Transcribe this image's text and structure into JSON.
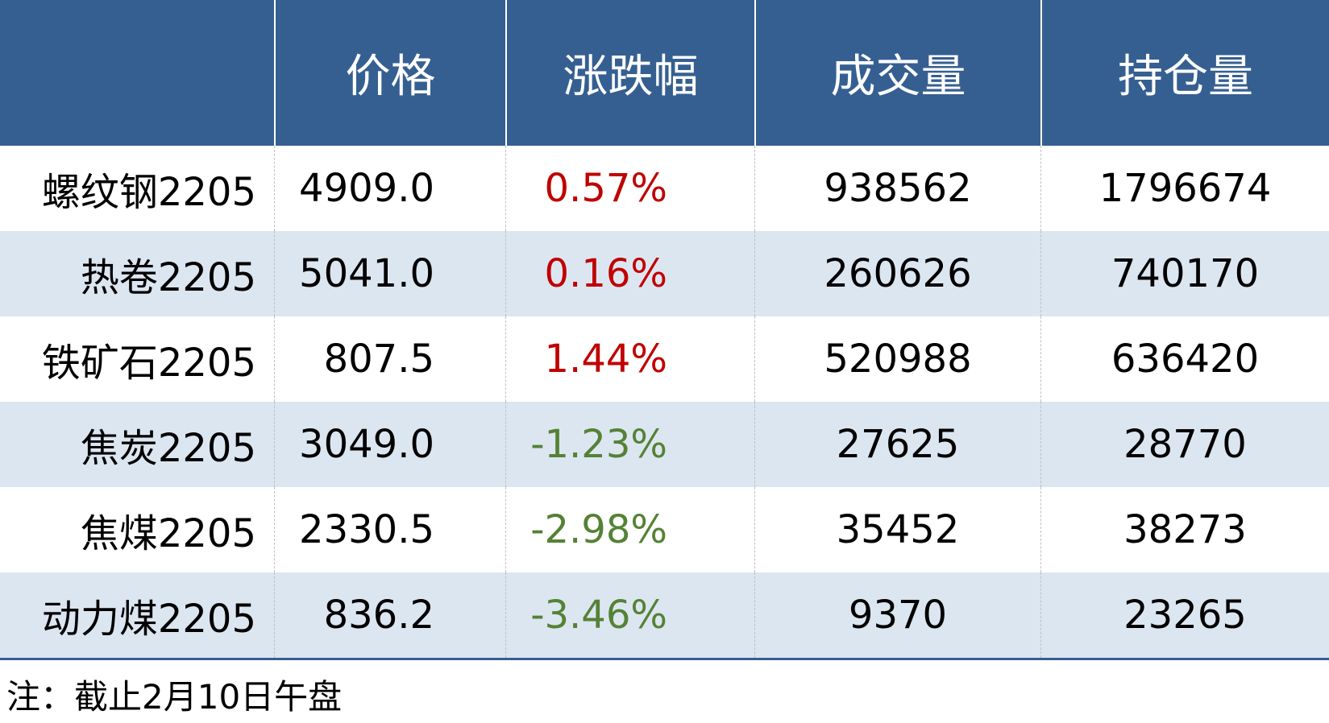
{
  "table": {
    "header": [
      "",
      "价格",
      "涨跌幅",
      "成交量",
      "持仓量"
    ],
    "rows": [
      [
        "螺纹钢2205",
        "4909.0",
        "0.57%",
        "938562",
        "1796674"
      ],
      [
        "热卷2205",
        "5041.0",
        "0.16%",
        "260626",
        "740170"
      ],
      [
        "铁矿石2205",
        "807.5",
        "1.44%",
        "520988",
        "636420"
      ],
      [
        "焦炭2205",
        "3049.0",
        "-1.23%",
        "27625",
        "28770"
      ],
      [
        "焦煤2205",
        "2330.5",
        "-2.98%",
        "35452",
        "38273"
      ],
      [
        "动力煤2205",
        "836.2",
        "-3.46%",
        "9370",
        "23265"
      ]
    ]
  },
  "note": "注：截止2月10日午盘"
}
